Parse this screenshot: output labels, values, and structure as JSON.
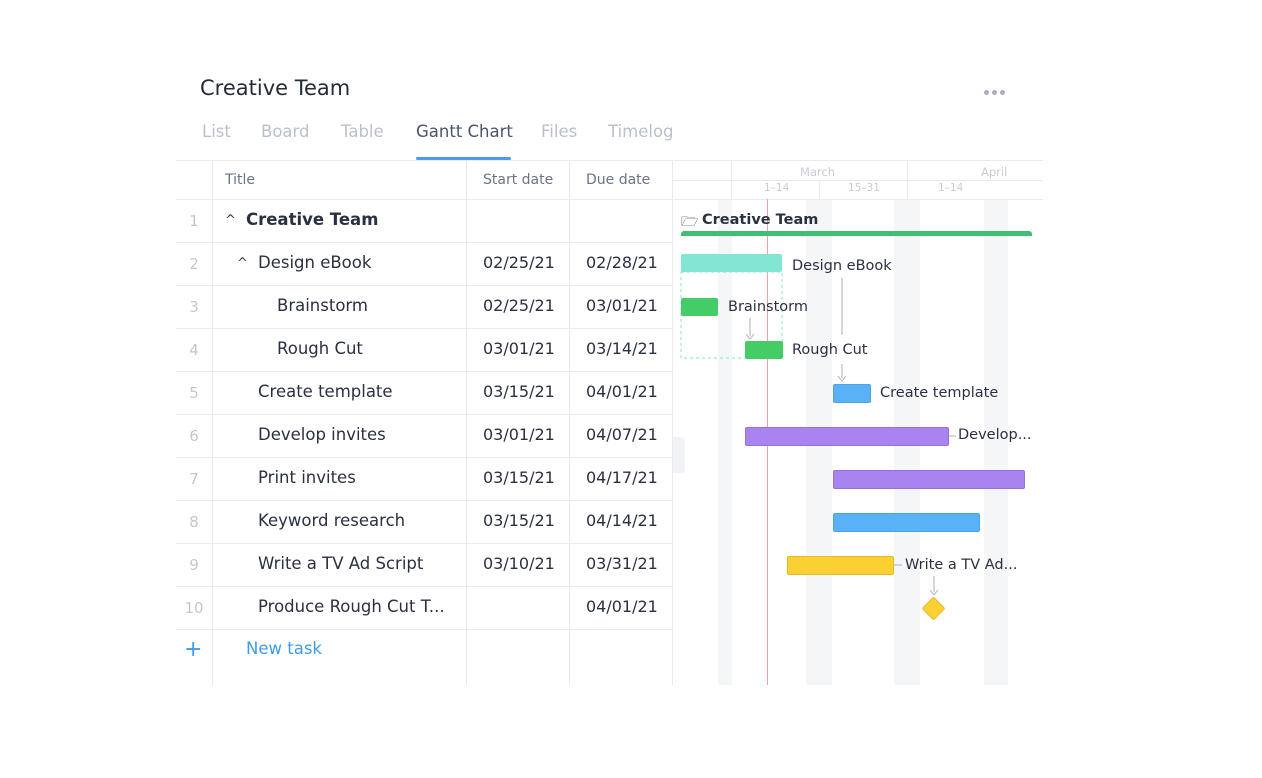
{
  "project": {
    "title": "Creative Team"
  },
  "tabs": [
    "List",
    "Board",
    "Table",
    "Gantt Chart",
    "Files",
    "Timelog"
  ],
  "active_tab": "Gantt Chart",
  "columns": {
    "title": "Title",
    "start": "Start date",
    "due": "Due date"
  },
  "rows": [
    {
      "num": "1",
      "title": "Creative Team",
      "start": "",
      "due": ""
    },
    {
      "num": "2",
      "title": "Design eBook",
      "start": "02/25/21",
      "due": "02/28/21"
    },
    {
      "num": "3",
      "title": "Brainstorm",
      "start": "02/25/21",
      "due": "03/01/21"
    },
    {
      "num": "4",
      "title": "Rough Cut",
      "start": "03/01/21",
      "due": "03/14/21"
    },
    {
      "num": "5",
      "title": "Create template",
      "start": "03/15/21",
      "due": "04/01/21"
    },
    {
      "num": "6",
      "title": "Develop invites",
      "start": "03/01/21",
      "due": "04/07/21"
    },
    {
      "num": "7",
      "title": "Print invites",
      "start": "03/15/21",
      "due": "04/17/21"
    },
    {
      "num": "8",
      "title": "Keyword research",
      "start": "03/15/21",
      "due": "04/14/21"
    },
    {
      "num": "9",
      "title": "Write a TV Ad Script",
      "start": "03/10/21",
      "due": "03/31/21"
    },
    {
      "num": "10",
      "title": "Produce Rough Cut T...",
      "start": "",
      "due": "04/01/21"
    }
  ],
  "new_task": "New task",
  "gantt": {
    "months": [
      "March",
      "April"
    ],
    "weeks": [
      "1–14",
      "15–31",
      "1–14"
    ],
    "labels": {
      "creative_team": "Creative Team",
      "design_ebook": "Design eBook",
      "brainstorm": "Brainstorm",
      "rough_cut": "Rough Cut",
      "create_template": "Create template",
      "develop": "Develop...",
      "write_ad": "Write a TV Ad..."
    },
    "colors": {
      "project": "#3fbf73",
      "design_ebook": "#83e6d2",
      "green": "#44cc66",
      "blue": "#58b2f5",
      "purple": "#a984f0",
      "yellow": "#fbd033",
      "today_line": "#f2a0a6"
    }
  }
}
